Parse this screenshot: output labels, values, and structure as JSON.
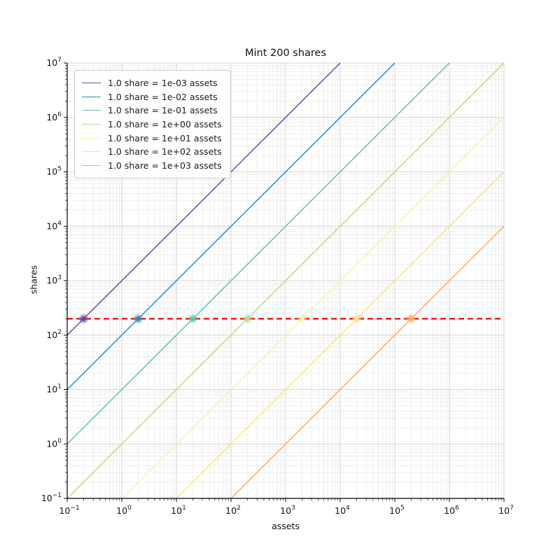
{
  "chart_data": {
    "type": "line",
    "title": "Mint 200 shares",
    "xlabel": "assets",
    "ylabel": "shares",
    "xscale": "log10",
    "yscale": "log10",
    "xlim": [
      0.1,
      10000000
    ],
    "ylim": [
      0.1,
      10000000
    ],
    "tick_exponents": [
      -1,
      0,
      1,
      2,
      3,
      4,
      5,
      6,
      7
    ],
    "minor_mantissas": [
      2,
      3,
      4,
      5,
      6,
      7,
      8,
      9
    ],
    "grid": {
      "major_color": "#d4d4d4",
      "minor_color": "#eaeaea",
      "enabled": true
    },
    "spine_color": "#000000",
    "target_shares": 200,
    "hline": {
      "y": 200,
      "color": "#ff0000",
      "style": "dashed",
      "width": 2.3
    },
    "legend_position": "upper-left",
    "series": [
      {
        "name": "1.0 share = 1e-03 assets",
        "rate": "1e-03",
        "rate_exp": -3,
        "color": "#5e4fa2",
        "intersect": {
          "assets": 0.2,
          "shares": 200
        }
      },
      {
        "name": "1.0 share = 1e-02 assets",
        "rate": "1e-02",
        "rate_exp": -2,
        "color": "#3288bd",
        "intersect": {
          "assets": 2,
          "shares": 200
        }
      },
      {
        "name": "1.0 share = 1e-01 assets",
        "rate": "1e-01",
        "rate_exp": -1,
        "color": "#66c2a5",
        "intersect": {
          "assets": 20,
          "shares": 200
        }
      },
      {
        "name": "1.0 share = 1e+00 assets",
        "rate": "1e+00",
        "rate_exp": 0,
        "color": "#b0df8a",
        "intersect": {
          "assets": 200,
          "shares": 200
        }
      },
      {
        "name": "1.0 share = 1e+01 assets",
        "rate": "1e+01",
        "rate_exp": 1,
        "color": "#edf8a4",
        "intersect": {
          "assets": 2000,
          "shares": 200
        }
      },
      {
        "name": "1.0 share = 1e+02 assets",
        "rate": "1e+02",
        "rate_exp": 2,
        "color": "#fee08b",
        "intersect": {
          "assets": 20000,
          "shares": 200
        }
      },
      {
        "name": "1.0 share = 1e+03 assets",
        "rate": "1e+03",
        "rate_exp": 3,
        "color": "#fdae61",
        "intersect": {
          "assets": 200000,
          "shares": 200
        }
      }
    ]
  }
}
